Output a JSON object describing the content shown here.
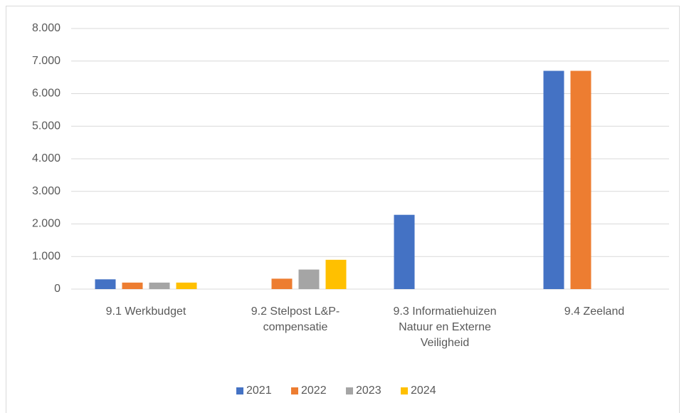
{
  "chart_data": {
    "type": "bar",
    "categories": [
      "9.1 Werkbudget",
      "9.2 Stelpost L&P-compensatie",
      "9.3 Informatiehuizen Natuur en Externe Veiligheid",
      "9.4 Zeeland"
    ],
    "series": [
      {
        "name": "2021",
        "color": "#4472c4",
        "values": [
          300,
          0,
          2280,
          6700
        ]
      },
      {
        "name": "2022",
        "color": "#ed7d31",
        "values": [
          200,
          320,
          0,
          6700
        ]
      },
      {
        "name": "2023",
        "color": "#a5a5a5",
        "values": [
          200,
          600,
          0,
          0
        ]
      },
      {
        "name": "2024",
        "color": "#ffc000",
        "values": [
          200,
          900,
          0,
          0
        ]
      }
    ],
    "ylim": [
      0,
      8000
    ],
    "yticks": [
      0,
      {
        "value": 1000,
        "label": "1.000"
      },
      {
        "value": 2000,
        "label": "2.000"
      },
      {
        "value": 3000,
        "label": "3.000"
      },
      {
        "value": 4000,
        "label": "4.000"
      },
      {
        "value": 5000,
        "label": "5.000"
      },
      {
        "value": 6000,
        "label": "6.000"
      },
      {
        "value": 7000,
        "label": "7.000"
      },
      {
        "value": 8000,
        "label": "8.000"
      }
    ],
    "grid": true,
    "legend": "bottom"
  }
}
